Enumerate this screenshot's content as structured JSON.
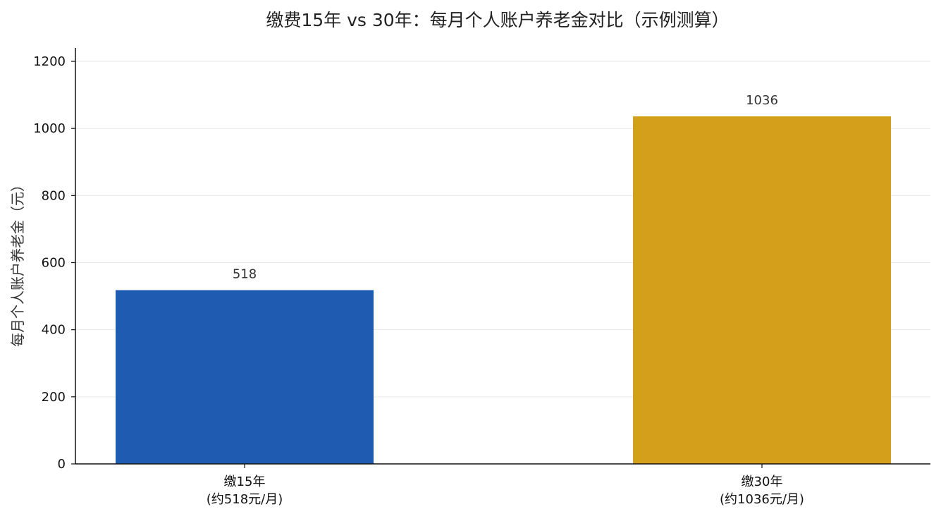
{
  "chart_data": {
    "type": "bar",
    "title": "缴费15年 vs 30年：每月个人账户养老金对比（示例测算）",
    "xlabel": "",
    "ylabel": "每月个人账户养老金（元）",
    "ylim": [
      0,
      1240
    ],
    "yticks": [
      0,
      200,
      400,
      600,
      800,
      1000,
      1200
    ],
    "grid": true,
    "legend": "none",
    "categories": [
      [
        "缴15年",
        "(约518元/月)"
      ],
      [
        "缴30年",
        "(约1036元/月)"
      ]
    ],
    "values": [
      518,
      1036
    ],
    "data_labels": [
      "518",
      "1036"
    ],
    "colors": [
      "#1f5bb0",
      "#d4a01b"
    ]
  }
}
